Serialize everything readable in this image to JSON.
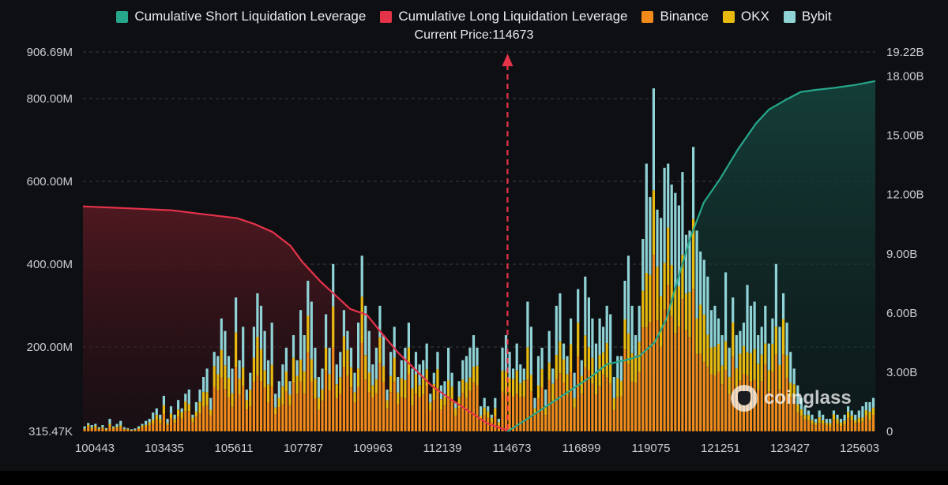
{
  "chart_data": {
    "type": "bar",
    "legend": [
      {
        "name": "Cumulative Short Liquidation Leverage",
        "color": "#26a68b"
      },
      {
        "name": "Cumulative Long Liquidation Leverage",
        "color": "#e5334a"
      },
      {
        "name": "Binance",
        "color": "#f08a1a"
      },
      {
        "name": "OKX",
        "color": "#e8b90f"
      },
      {
        "name": "Bybit",
        "color": "#8fd3d6"
      }
    ],
    "current_price_label": "Current Price:114673",
    "current_price": 114673,
    "x_range": [
      100443,
      127000
    ],
    "x_ticks": [
      "100443",
      "103435",
      "105611",
      "107787",
      "109963",
      "112139",
      "114673",
      "116899",
      "119075",
      "121251",
      "123427",
      "125603"
    ],
    "left_axis": {
      "range": [
        315470,
        906690000
      ],
      "ticks": [
        "906.69M",
        "800.00M",
        "600.00M",
        "400.00M",
        "200.00M",
        "315.47K"
      ]
    },
    "right_axis": {
      "range": [
        0,
        19220000000
      ],
      "ticks": [
        "19.22B",
        "18.00B",
        "15.00B",
        "12.00B",
        "9.00B",
        "6.00B",
        "3.00B",
        "0"
      ]
    },
    "bars_total_m": [
      12,
      20,
      15,
      18,
      10,
      15,
      8,
      30,
      12,
      18,
      25,
      10,
      8,
      5,
      7,
      12,
      18,
      25,
      30,
      45,
      55,
      40,
      85,
      30,
      60,
      40,
      75,
      55,
      90,
      100,
      40,
      70,
      100,
      130,
      150,
      80,
      190,
      180,
      270,
      240,
      180,
      150,
      320,
      170,
      250,
      100,
      140,
      250,
      330,
      300,
      240,
      170,
      260,
      90,
      120,
      160,
      200,
      120,
      230,
      170,
      290,
      230,
      360,
      310,
      200,
      130,
      150,
      280,
      200,
      400,
      160,
      190,
      290,
      240,
      200,
      140,
      260,
      420,
      300,
      240,
      160,
      200,
      300,
      230,
      100,
      190,
      250,
      130,
      170,
      200,
      260,
      150,
      190,
      160,
      170,
      210,
      90,
      140,
      190,
      110,
      120,
      200,
      140,
      70,
      120,
      170,
      180,
      200,
      230,
      200,
      60,
      80,
      60,
      40,
      80,
      30,
      200,
      230,
      190,
      150,
      210,
      160,
      150,
      310,
      250,
      80,
      180,
      200,
      100,
      240,
      150,
      300,
      330,
      210,
      180,
      270,
      140,
      340,
      170,
      370,
      320,
      270,
      210,
      270,
      250,
      300,
      280,
      130,
      180,
      180,
      360,
      420,
      300,
      230,
      300,
      460,
      640,
      560,
      820,
      530,
      510,
      630,
      640,
      590,
      570,
      540,
      620,
      470,
      480,
      680,
      480,
      430,
      410,
      370,
      290,
      300,
      270,
      230,
      380,
      200,
      320,
      230,
      240,
      260,
      350,
      300,
      310,
      230,
      250,
      300,
      210,
      270,
      400,
      250,
      330,
      260,
      190,
      150,
      110,
      80,
      60,
      50,
      40,
      30,
      50,
      40,
      30,
      30,
      50,
      40,
      30,
      40,
      60,
      50,
      40,
      50,
      60,
      70,
      70,
      80
    ],
    "long_cum_b": {
      "x": [
        100443,
        102000,
        103435,
        104500,
        105611,
        106200,
        106800,
        107400,
        107787,
        108400,
        108900,
        109400,
        109963,
        110500,
        111000,
        111600,
        112139,
        112800,
        113400,
        114000,
        114673
      ],
      "y": [
        11.4,
        11.3,
        11.2,
        11.0,
        10.8,
        10.5,
        10.1,
        9.4,
        8.6,
        7.6,
        6.9,
        6.2,
        5.9,
        4.9,
        4.0,
        3.1,
        2.3,
        1.6,
        1.0,
        0.4,
        0.05
      ]
    },
    "short_cum_b": {
      "x": [
        114673,
        115300,
        115900,
        116500,
        116899,
        117500,
        118000,
        118600,
        119075,
        119600,
        120000,
        120400,
        120800,
        121251,
        121800,
        122400,
        123000,
        123427,
        124000,
        124500,
        125000,
        125603,
        126300,
        127000
      ],
      "y": [
        0,
        0.6,
        1.2,
        1.8,
        2.2,
        2.8,
        3.4,
        3.6,
        3.8,
        4.5,
        5.7,
        7.8,
        9.8,
        11.6,
        12.8,
        14.3,
        15.6,
        16.3,
        16.8,
        17.2,
        17.3,
        17.4,
        17.55,
        17.75
      ]
    },
    "watermark": "coinglass"
  }
}
